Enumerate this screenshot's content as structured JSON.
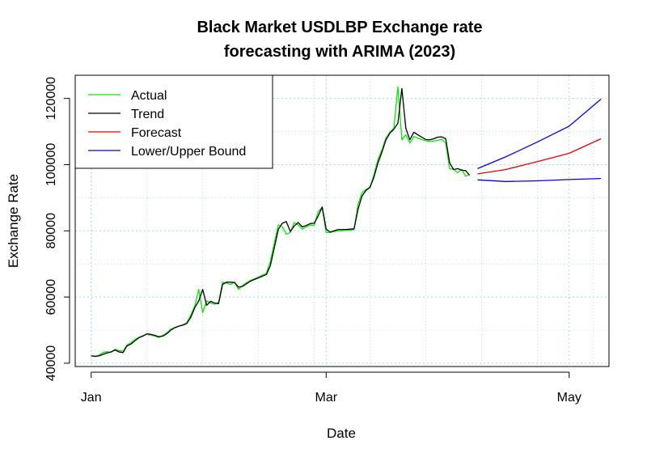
{
  "chart_data": {
    "type": "line",
    "title_line1": "Black Market USDLBP Exchange rate",
    "title_line2": "forecasting with ARIMA (2023)",
    "xlabel": "Date",
    "ylabel": "Exchange Rate",
    "x_tick_labels": [
      "Jan",
      "Mar",
      "May"
    ],
    "x_tick_dates": [
      "2023-01-01",
      "2023-03-01",
      "2023-05-01"
    ],
    "x_range": [
      "2022-12-28",
      "2023-05-11"
    ],
    "y_ticks": [
      40000,
      60000,
      80000,
      100000,
      120000
    ],
    "y_tick_labels": [
      "40000",
      "60000",
      "80000",
      "100000",
      "120000"
    ],
    "ylim": [
      39000,
      127000
    ],
    "grid": true,
    "legend_position": "top-left",
    "series": [
      {
        "name": "Actual",
        "color": "#00ee00",
        "points": [
          [
            "2023-01-01",
            42200
          ],
          [
            "2023-01-02",
            42000
          ],
          [
            "2023-01-03",
            42500
          ],
          [
            "2023-01-04",
            43200
          ],
          [
            "2023-01-05",
            43500
          ],
          [
            "2023-01-06",
            43300
          ],
          [
            "2023-01-07",
            44200
          ],
          [
            "2023-01-08",
            43800
          ],
          [
            "2023-01-09",
            43600
          ],
          [
            "2023-01-10",
            45500
          ],
          [
            "2023-01-11",
            46200
          ],
          [
            "2023-01-12",
            47200
          ],
          [
            "2023-01-13",
            47800
          ],
          [
            "2023-01-14",
            48300
          ],
          [
            "2023-01-15",
            48700
          ],
          [
            "2023-01-16",
            48500
          ],
          [
            "2023-01-17",
            48200
          ],
          [
            "2023-01-18",
            47800
          ],
          [
            "2023-01-19",
            48400
          ],
          [
            "2023-01-20",
            49200
          ],
          [
            "2023-01-21",
            50300
          ],
          [
            "2023-01-22",
            50800
          ],
          [
            "2023-01-23",
            51200
          ],
          [
            "2023-01-24",
            51600
          ],
          [
            "2023-01-25",
            52200
          ],
          [
            "2023-01-26",
            54500
          ],
          [
            "2023-01-27",
            57200
          ],
          [
            "2023-01-28",
            62300
          ],
          [
            "2023-01-29",
            55300
          ],
          [
            "2023-01-30",
            58800
          ],
          [
            "2023-01-31",
            58200
          ],
          [
            "2023-02-01",
            57800
          ],
          [
            "2023-02-02",
            58400
          ],
          [
            "2023-02-03",
            64500
          ],
          [
            "2023-02-04",
            64200
          ],
          [
            "2023-02-05",
            63800
          ],
          [
            "2023-02-06",
            64500
          ],
          [
            "2023-02-07",
            62300
          ],
          [
            "2023-02-08",
            63500
          ],
          [
            "2023-02-09",
            64300
          ],
          [
            "2023-02-10",
            65000
          ],
          [
            "2023-02-11",
            65500
          ],
          [
            "2023-02-12",
            66000
          ],
          [
            "2023-02-13",
            66600
          ],
          [
            "2023-02-14",
            67200
          ],
          [
            "2023-02-15",
            70800
          ],
          [
            "2023-02-16",
            76500
          ],
          [
            "2023-02-17",
            81800
          ],
          [
            "2023-02-18",
            81200
          ],
          [
            "2023-02-19",
            79000
          ],
          [
            "2023-02-20",
            79500
          ],
          [
            "2023-02-21",
            82500
          ],
          [
            "2023-02-22",
            81800
          ],
          [
            "2023-02-23",
            80500
          ],
          [
            "2023-02-24",
            81200
          ],
          [
            "2023-02-25",
            81800
          ],
          [
            "2023-02-26",
            81600
          ],
          [
            "2023-02-27",
            85800
          ],
          [
            "2023-02-28",
            87000
          ],
          [
            "2023-03-01",
            79500
          ],
          [
            "2023-03-02",
            79500
          ],
          [
            "2023-03-03",
            79800
          ],
          [
            "2023-03-04",
            80000
          ],
          [
            "2023-03-05",
            80000
          ],
          [
            "2023-03-06",
            80200
          ],
          [
            "2023-03-07",
            80200
          ],
          [
            "2023-03-08",
            80400
          ],
          [
            "2023-03-09",
            88000
          ],
          [
            "2023-03-10",
            91500
          ],
          [
            "2023-03-11",
            92500
          ],
          [
            "2023-03-12",
            93000
          ],
          [
            "2023-03-13",
            97000
          ],
          [
            "2023-03-14",
            101500
          ],
          [
            "2023-03-15",
            104500
          ],
          [
            "2023-03-16",
            108000
          ],
          [
            "2023-03-17",
            109800
          ],
          [
            "2023-03-18",
            111000
          ],
          [
            "2023-03-19",
            123500
          ],
          [
            "2023-03-20",
            107500
          ],
          [
            "2023-03-21",
            109000
          ],
          [
            "2023-03-22",
            106500
          ],
          [
            "2023-03-23",
            108500
          ],
          [
            "2023-03-24",
            108000
          ],
          [
            "2023-03-25",
            107600
          ],
          [
            "2023-03-26",
            107200
          ],
          [
            "2023-03-27",
            107000
          ],
          [
            "2023-03-28",
            107100
          ],
          [
            "2023-03-29",
            107300
          ],
          [
            "2023-03-30",
            107700
          ],
          [
            "2023-03-31",
            106500
          ],
          [
            "2023-04-01",
            98800
          ],
          [
            "2023-04-02",
            98600
          ],
          [
            "2023-04-03",
            97500
          ],
          [
            "2023-04-04",
            98600
          ],
          [
            "2023-04-05",
            96500
          ],
          [
            "2023-04-06",
            97000
          ]
        ]
      },
      {
        "name": "Trend",
        "color": "#000000",
        "points": [
          [
            "2023-01-01",
            42200
          ],
          [
            "2023-01-02",
            42100
          ],
          [
            "2023-01-03",
            42200
          ],
          [
            "2023-01-04",
            42700
          ],
          [
            "2023-01-05",
            43100
          ],
          [
            "2023-01-06",
            43400
          ],
          [
            "2023-01-07",
            44000
          ],
          [
            "2023-01-08",
            43400
          ],
          [
            "2023-01-09",
            43200
          ],
          [
            "2023-01-10",
            45200
          ],
          [
            "2023-01-11",
            45800
          ],
          [
            "2023-01-12",
            46800
          ],
          [
            "2023-01-13",
            47700
          ],
          [
            "2023-01-14",
            48200
          ],
          [
            "2023-01-15",
            48900
          ],
          [
            "2023-01-16",
            48700
          ],
          [
            "2023-01-17",
            48400
          ],
          [
            "2023-01-18",
            48000
          ],
          [
            "2023-01-19",
            48200
          ],
          [
            "2023-01-20",
            48900
          ],
          [
            "2023-01-21",
            50000
          ],
          [
            "2023-01-22",
            50700
          ],
          [
            "2023-01-23",
            51200
          ],
          [
            "2023-01-24",
            51500
          ],
          [
            "2023-01-25",
            52000
          ],
          [
            "2023-01-26",
            53800
          ],
          [
            "2023-01-27",
            56800
          ],
          [
            "2023-01-28",
            58800
          ],
          [
            "2023-01-29",
            62300
          ],
          [
            "2023-01-30",
            57500
          ],
          [
            "2023-01-31",
            58700
          ],
          [
            "2023-02-01",
            58200
          ],
          [
            "2023-02-02",
            58000
          ],
          [
            "2023-02-03",
            63800
          ],
          [
            "2023-02-04",
            64500
          ],
          [
            "2023-02-05",
            64500
          ],
          [
            "2023-02-06",
            64400
          ],
          [
            "2023-02-07",
            63000
          ],
          [
            "2023-02-08",
            63200
          ],
          [
            "2023-02-09",
            64000
          ],
          [
            "2023-02-10",
            64800
          ],
          [
            "2023-02-11",
            65300
          ],
          [
            "2023-02-12",
            65800
          ],
          [
            "2023-02-13",
            66300
          ],
          [
            "2023-02-14",
            66800
          ],
          [
            "2023-02-15",
            69500
          ],
          [
            "2023-02-16",
            75000
          ],
          [
            "2023-02-17",
            80500
          ],
          [
            "2023-02-18",
            82300
          ],
          [
            "2023-02-19",
            82800
          ],
          [
            "2023-02-20",
            79800
          ],
          [
            "2023-02-21",
            81500
          ],
          [
            "2023-02-22",
            82500
          ],
          [
            "2023-02-23",
            81200
          ],
          [
            "2023-02-24",
            81600
          ],
          [
            "2023-02-25",
            82200
          ],
          [
            "2023-02-26",
            82300
          ],
          [
            "2023-02-27",
            84500
          ],
          [
            "2023-02-28",
            87200
          ],
          [
            "2023-03-01",
            80500
          ],
          [
            "2023-03-02",
            79600
          ],
          [
            "2023-03-03",
            80000
          ],
          [
            "2023-03-04",
            80400
          ],
          [
            "2023-03-05",
            80400
          ],
          [
            "2023-03-06",
            80400
          ],
          [
            "2023-03-07",
            80500
          ],
          [
            "2023-03-08",
            80600
          ],
          [
            "2023-03-09",
            86500
          ],
          [
            "2023-03-10",
            90500
          ],
          [
            "2023-03-11",
            92200
          ],
          [
            "2023-03-12",
            93200
          ],
          [
            "2023-03-13",
            96200
          ],
          [
            "2023-03-14",
            100500
          ],
          [
            "2023-03-15",
            103800
          ],
          [
            "2023-03-16",
            107500
          ],
          [
            "2023-03-17",
            109500
          ],
          [
            "2023-03-18",
            110700
          ],
          [
            "2023-03-19",
            112500
          ],
          [
            "2023-03-20",
            123000
          ],
          [
            "2023-03-21",
            111000
          ],
          [
            "2023-03-22",
            107500
          ],
          [
            "2023-03-23",
            109800
          ],
          [
            "2023-03-24",
            109000
          ],
          [
            "2023-03-25",
            108300
          ],
          [
            "2023-03-26",
            107600
          ],
          [
            "2023-03-27",
            107500
          ],
          [
            "2023-03-28",
            107800
          ],
          [
            "2023-03-29",
            108300
          ],
          [
            "2023-03-30",
            108400
          ],
          [
            "2023-03-31",
            107800
          ],
          [
            "2023-04-01",
            100500
          ],
          [
            "2023-04-02",
            98500
          ],
          [
            "2023-04-03",
            98800
          ],
          [
            "2023-04-04",
            98300
          ],
          [
            "2023-04-05",
            98200
          ],
          [
            "2023-04-06",
            96800
          ]
        ]
      },
      {
        "name": "Forecast",
        "color": "#ee0000",
        "points": [
          [
            "2023-04-08",
            97200
          ],
          [
            "2023-04-15",
            98500
          ],
          [
            "2023-04-23",
            100900
          ],
          [
            "2023-05-01",
            103400
          ],
          [
            "2023-05-09",
            107800
          ]
        ]
      },
      {
        "name": "Lower/Upper Bound",
        "color": "#0000ee",
        "upper": [
          [
            "2023-04-08",
            98800
          ],
          [
            "2023-04-15",
            102300
          ],
          [
            "2023-04-23",
            106800
          ],
          [
            "2023-05-01",
            111600
          ],
          [
            "2023-05-09",
            119800
          ]
        ],
        "lower": [
          [
            "2023-04-08",
            95400
          ],
          [
            "2023-04-15",
            94900
          ],
          [
            "2023-04-23",
            95100
          ],
          [
            "2023-05-01",
            95500
          ],
          [
            "2023-05-09",
            95800
          ]
        ]
      }
    ]
  }
}
